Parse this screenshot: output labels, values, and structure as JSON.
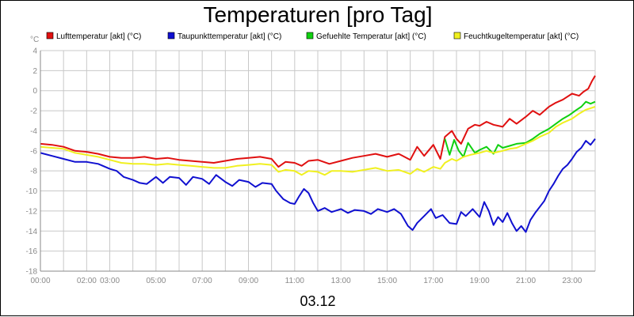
{
  "chart_data": {
    "type": "line",
    "title": "Temperaturen [pro Tag]",
    "date_label": "03.12",
    "y_unit": "°C",
    "ylim": [
      -18,
      4
    ],
    "y_ticks": [
      "4",
      "2",
      "0",
      "-2",
      "-4",
      "-6",
      "-8",
      "-10",
      "-12",
      "-14",
      "-16",
      "-18"
    ],
    "x_range_hours": [
      0,
      24
    ],
    "x_ticks": [
      {
        "hour": 0,
        "label": "00:00"
      },
      {
        "hour": 2,
        "label": "02:00"
      },
      {
        "hour": 3,
        "label": "03:00"
      },
      {
        "hour": 5,
        "label": "05:00"
      },
      {
        "hour": 7,
        "label": "07:00"
      },
      {
        "hour": 9,
        "label": "09:00"
      },
      {
        "hour": 11,
        "label": "11:00"
      },
      {
        "hour": 13,
        "label": "13:00"
      },
      {
        "hour": 15,
        "label": "15:00"
      },
      {
        "hour": 17,
        "label": "17:00"
      },
      {
        "hour": 19,
        "label": "19:00"
      },
      {
        "hour": 21,
        "label": "21:00"
      },
      {
        "hour": 23,
        "label": "23:00"
      }
    ],
    "grid": true,
    "legend_position": "top",
    "series": [
      {
        "name": "Lufttemperatur [akt] (°C)",
        "color": "#e01010",
        "points": [
          [
            0,
            -5.3
          ],
          [
            0.5,
            -5.4
          ],
          [
            1,
            -5.6
          ],
          [
            1.5,
            -6
          ],
          [
            2,
            -6.1
          ],
          [
            2.5,
            -6.3
          ],
          [
            3,
            -6.6
          ],
          [
            3.5,
            -6.7
          ],
          [
            4,
            -6.7
          ],
          [
            4.5,
            -6.6
          ],
          [
            5,
            -6.8
          ],
          [
            5.5,
            -6.7
          ],
          [
            6,
            -6.9
          ],
          [
            6.5,
            -7
          ],
          [
            7,
            -7.1
          ],
          [
            7.5,
            -7.2
          ],
          [
            8,
            -7
          ],
          [
            8.5,
            -6.8
          ],
          [
            9,
            -6.7
          ],
          [
            9.5,
            -6.6
          ],
          [
            10,
            -6.8
          ],
          [
            10.3,
            -7.6
          ],
          [
            10.6,
            -7.1
          ],
          [
            11,
            -7.2
          ],
          [
            11.3,
            -7.5
          ],
          [
            11.6,
            -7
          ],
          [
            12,
            -6.9
          ],
          [
            12.5,
            -7.3
          ],
          [
            13,
            -7
          ],
          [
            13.5,
            -6.7
          ],
          [
            14,
            -6.5
          ],
          [
            14.5,
            -6.3
          ],
          [
            15,
            -6.6
          ],
          [
            15.5,
            -6.3
          ],
          [
            16,
            -6.9
          ],
          [
            16.3,
            -5.6
          ],
          [
            16.6,
            -6.5
          ],
          [
            17,
            -5.4
          ],
          [
            17.3,
            -6.8
          ],
          [
            17.5,
            -4.6
          ],
          [
            17.8,
            -4
          ],
          [
            18,
            -4.8
          ],
          [
            18.2,
            -5.3
          ],
          [
            18.5,
            -3.8
          ],
          [
            18.8,
            -3.4
          ],
          [
            19,
            -3.5
          ],
          [
            19.3,
            -3.1
          ],
          [
            19.6,
            -3.4
          ],
          [
            20,
            -3.6
          ],
          [
            20.3,
            -2.8
          ],
          [
            20.6,
            -3.3
          ],
          [
            21,
            -2.6
          ],
          [
            21.3,
            -2
          ],
          [
            21.6,
            -2.4
          ],
          [
            22,
            -1.6
          ],
          [
            22.3,
            -1.2
          ],
          [
            22.6,
            -0.9
          ],
          [
            23,
            -0.3
          ],
          [
            23.3,
            -0.5
          ],
          [
            23.5,
            -0.1
          ],
          [
            23.7,
            0.2
          ],
          [
            23.85,
            0.9
          ],
          [
            24,
            1.5
          ]
        ]
      },
      {
        "name": "Taupunkttemperatur [akt] (°C)",
        "color": "#1010d0",
        "points": [
          [
            0,
            -6.2
          ],
          [
            0.5,
            -6.5
          ],
          [
            1,
            -6.8
          ],
          [
            1.5,
            -7.1
          ],
          [
            2,
            -7.1
          ],
          [
            2.5,
            -7.3
          ],
          [
            3,
            -7.8
          ],
          [
            3.3,
            -8
          ],
          [
            3.6,
            -8.6
          ],
          [
            4,
            -8.9
          ],
          [
            4.3,
            -9.2
          ],
          [
            4.6,
            -9.3
          ],
          [
            5,
            -8.6
          ],
          [
            5.3,
            -9.2
          ],
          [
            5.6,
            -8.6
          ],
          [
            6,
            -8.7
          ],
          [
            6.3,
            -9.4
          ],
          [
            6.6,
            -8.6
          ],
          [
            7,
            -8.8
          ],
          [
            7.3,
            -9.3
          ],
          [
            7.6,
            -8.4
          ],
          [
            8,
            -9.1
          ],
          [
            8.3,
            -9.5
          ],
          [
            8.6,
            -8.9
          ],
          [
            9,
            -9.1
          ],
          [
            9.3,
            -9.6
          ],
          [
            9.6,
            -9.2
          ],
          [
            10,
            -9.3
          ],
          [
            10.2,
            -10
          ],
          [
            10.5,
            -10.8
          ],
          [
            10.8,
            -11.2
          ],
          [
            11,
            -11.3
          ],
          [
            11.2,
            -10.5
          ],
          [
            11.4,
            -9.8
          ],
          [
            11.6,
            -10.2
          ],
          [
            11.8,
            -11.2
          ],
          [
            12,
            -12
          ],
          [
            12.3,
            -11.7
          ],
          [
            12.6,
            -12.1
          ],
          [
            13,
            -11.8
          ],
          [
            13.3,
            -12.2
          ],
          [
            13.6,
            -11.9
          ],
          [
            14,
            -12
          ],
          [
            14.3,
            -12.3
          ],
          [
            14.6,
            -11.8
          ],
          [
            15,
            -12.1
          ],
          [
            15.3,
            -11.8
          ],
          [
            15.6,
            -12.3
          ],
          [
            15.9,
            -13.5
          ],
          [
            16.1,
            -13.9
          ],
          [
            16.3,
            -13.2
          ],
          [
            16.6,
            -12.5
          ],
          [
            16.9,
            -11.8
          ],
          [
            17.1,
            -12.7
          ],
          [
            17.4,
            -12.4
          ],
          [
            17.7,
            -13.2
          ],
          [
            18,
            -13.3
          ],
          [
            18.2,
            -12.1
          ],
          [
            18.4,
            -12.5
          ],
          [
            18.7,
            -11.8
          ],
          [
            19,
            -12.6
          ],
          [
            19.2,
            -11.1
          ],
          [
            19.4,
            -12
          ],
          [
            19.6,
            -13.4
          ],
          [
            19.8,
            -12.6
          ],
          [
            20,
            -13.1
          ],
          [
            20.2,
            -12.2
          ],
          [
            20.4,
            -13.2
          ],
          [
            20.6,
            -14
          ],
          [
            20.8,
            -13.5
          ],
          [
            21,
            -14.1
          ],
          [
            21.2,
            -12.9
          ],
          [
            21.4,
            -12.2
          ],
          [
            21.6,
            -11.6
          ],
          [
            21.8,
            -11
          ],
          [
            22,
            -10
          ],
          [
            22.2,
            -9.3
          ],
          [
            22.4,
            -8.5
          ],
          [
            22.6,
            -7.8
          ],
          [
            22.8,
            -7.4
          ],
          [
            23,
            -6.8
          ],
          [
            23.2,
            -6.1
          ],
          [
            23.4,
            -5.7
          ],
          [
            23.6,
            -5
          ],
          [
            23.8,
            -5.4
          ],
          [
            24,
            -4.8
          ]
        ]
      },
      {
        "name": "Gefuehlte Temperatur [akt] (°C)",
        "color": "#10d010",
        "points": [
          [
            17.5,
            -4.8
          ],
          [
            17.7,
            -6.4
          ],
          [
            17.9,
            -4.9
          ],
          [
            18.1,
            -6
          ],
          [
            18.3,
            -6.6
          ],
          [
            18.5,
            -5.2
          ],
          [
            18.8,
            -6.2
          ],
          [
            19,
            -5.9
          ],
          [
            19.3,
            -5.6
          ],
          [
            19.6,
            -6.3
          ],
          [
            19.8,
            -5.4
          ],
          [
            20,
            -5.7
          ],
          [
            20.3,
            -5.5
          ],
          [
            20.6,
            -5.3
          ],
          [
            21,
            -5.2
          ],
          [
            21.3,
            -4.8
          ],
          [
            21.6,
            -4.3
          ],
          [
            22,
            -3.8
          ],
          [
            22.3,
            -3.3
          ],
          [
            22.6,
            -2.8
          ],
          [
            22.9,
            -2.4
          ],
          [
            23.2,
            -1.9
          ],
          [
            23.4,
            -1.6
          ],
          [
            23.6,
            -1.1
          ],
          [
            23.8,
            -1.3
          ],
          [
            24,
            -1.1
          ]
        ]
      },
      {
        "name": "Feuchtkugeltemperatur [akt] (°C)",
        "color": "#f0f020",
        "points": [
          [
            0,
            -5.6
          ],
          [
            0.5,
            -5.7
          ],
          [
            1,
            -5.8
          ],
          [
            1.5,
            -6.2
          ],
          [
            2,
            -6.4
          ],
          [
            2.5,
            -6.6
          ],
          [
            3,
            -6.9
          ],
          [
            3.5,
            -7.2
          ],
          [
            4,
            -7.3
          ],
          [
            4.5,
            -7.3
          ],
          [
            5,
            -7.4
          ],
          [
            5.5,
            -7.3
          ],
          [
            6,
            -7.4
          ],
          [
            6.5,
            -7.5
          ],
          [
            7,
            -7.6
          ],
          [
            7.5,
            -7.7
          ],
          [
            8,
            -7.7
          ],
          [
            8.5,
            -7.5
          ],
          [
            9,
            -7.4
          ],
          [
            9.5,
            -7.3
          ],
          [
            10,
            -7.4
          ],
          [
            10.3,
            -8.1
          ],
          [
            10.6,
            -7.9
          ],
          [
            11,
            -8
          ],
          [
            11.3,
            -8.4
          ],
          [
            11.6,
            -8
          ],
          [
            12,
            -8.1
          ],
          [
            12.3,
            -8.4
          ],
          [
            12.6,
            -8
          ],
          [
            13,
            -8
          ],
          [
            13.5,
            -8.1
          ],
          [
            14,
            -7.9
          ],
          [
            14.5,
            -7.7
          ],
          [
            15,
            -8
          ],
          [
            15.5,
            -7.9
          ],
          [
            16,
            -8.3
          ],
          [
            16.3,
            -7.8
          ],
          [
            16.6,
            -8.1
          ],
          [
            17,
            -7.6
          ],
          [
            17.3,
            -7.8
          ],
          [
            17.5,
            -7.2
          ],
          [
            17.8,
            -6.8
          ],
          [
            18,
            -7
          ],
          [
            18.3,
            -6.6
          ],
          [
            18.6,
            -6.4
          ],
          [
            19,
            -6.2
          ],
          [
            19.3,
            -6
          ],
          [
            19.6,
            -6.2
          ],
          [
            20,
            -6
          ],
          [
            20.3,
            -5.8
          ],
          [
            20.6,
            -5.7
          ],
          [
            21,
            -5.3
          ],
          [
            21.3,
            -5
          ],
          [
            21.6,
            -4.6
          ],
          [
            22,
            -4.2
          ],
          [
            22.3,
            -3.6
          ],
          [
            22.6,
            -3.2
          ],
          [
            23,
            -2.8
          ],
          [
            23.3,
            -2.3
          ],
          [
            23.6,
            -1.9
          ],
          [
            24,
            -1.6
          ]
        ]
      }
    ]
  }
}
